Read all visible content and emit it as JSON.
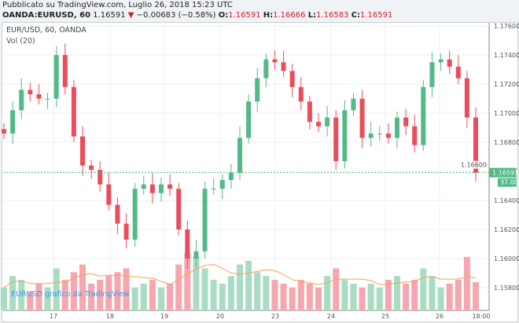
{
  "header": {
    "published": "Pubblicato su TradingView.com, Luglio 26, 2018 15:23 UTC",
    "symbol": "OANDA:EURUSD, 60",
    "last": "1.16591",
    "change": "−0.00683 (−0.58%)",
    "o_label": "O:",
    "o": "1.16591",
    "h_label": "H:",
    "h": "1.16666",
    "l_label": "L:",
    "l": "1.16583",
    "c_label": "C:",
    "c": "1.16591"
  },
  "legend": {
    "title": "EUR/USD, 60, OANDA",
    "vol": "Vol (20)"
  },
  "watermark": "EURUSD grafico da TradingView",
  "price_tag": "1.16591",
  "volume_tag": "37.00",
  "colors": {
    "up": "#53b987",
    "down": "#eb4d5c",
    "vol_up": "#a9dcc3",
    "vol_down": "#f5a6ae",
    "ma": "#f5a05a"
  },
  "chart_data": {
    "type": "candlestick",
    "y_ticks": [
      "1.17600",
      "1.17400",
      "1.17200",
      "1.17000",
      "1.16800",
      "1.16600",
      "1.16400",
      "1.16200",
      "1.16000",
      "1.15800"
    ],
    "x_ticks": [
      "17",
      "18",
      "19",
      "20",
      "23",
      "24",
      "25",
      "26",
      "18:00"
    ],
    "ylim": [
      1.1568,
      1.1764
    ],
    "closes": [
      1.1686,
      1.1702,
      1.1716,
      1.1713,
      1.171,
      1.171,
      1.174,
      1.1718,
      1.1684,
      1.1664,
      1.1661,
      1.1651,
      1.1637,
      1.1624,
      1.1613,
      1.1648,
      1.1651,
      1.1645,
      1.1651,
      1.1648,
      1.162,
      1.16,
      1.1605,
      1.1648,
      1.1648,
      1.1654,
      1.1659,
      1.1683,
      1.1708,
      1.1724,
      1.1737,
      1.1735,
      1.1729,
      1.1718,
      1.1708,
      1.1694,
      1.1691,
      1.1697,
      1.1667,
      1.1702,
      1.171,
      1.1683,
      1.1686,
      1.1686,
      1.1683,
      1.1697,
      1.1691,
      1.1678,
      1.1718,
      1.1735,
      1.1737,
      1.1732,
      1.1724,
      1.1697,
      1.1659
    ],
    "volumes": [
      30,
      45,
      40,
      25,
      35,
      30,
      55,
      40,
      50,
      60,
      35,
      40,
      45,
      50,
      55,
      30,
      35,
      40,
      30,
      35,
      60,
      75,
      70,
      55,
      40,
      35,
      45,
      60,
      65,
      50,
      45,
      40,
      35,
      30,
      40,
      35,
      30,
      45,
      55,
      40,
      35,
      30,
      35,
      30,
      40,
      45,
      35,
      40,
      55,
      45,
      30,
      35,
      40,
      70,
      37
    ]
  }
}
